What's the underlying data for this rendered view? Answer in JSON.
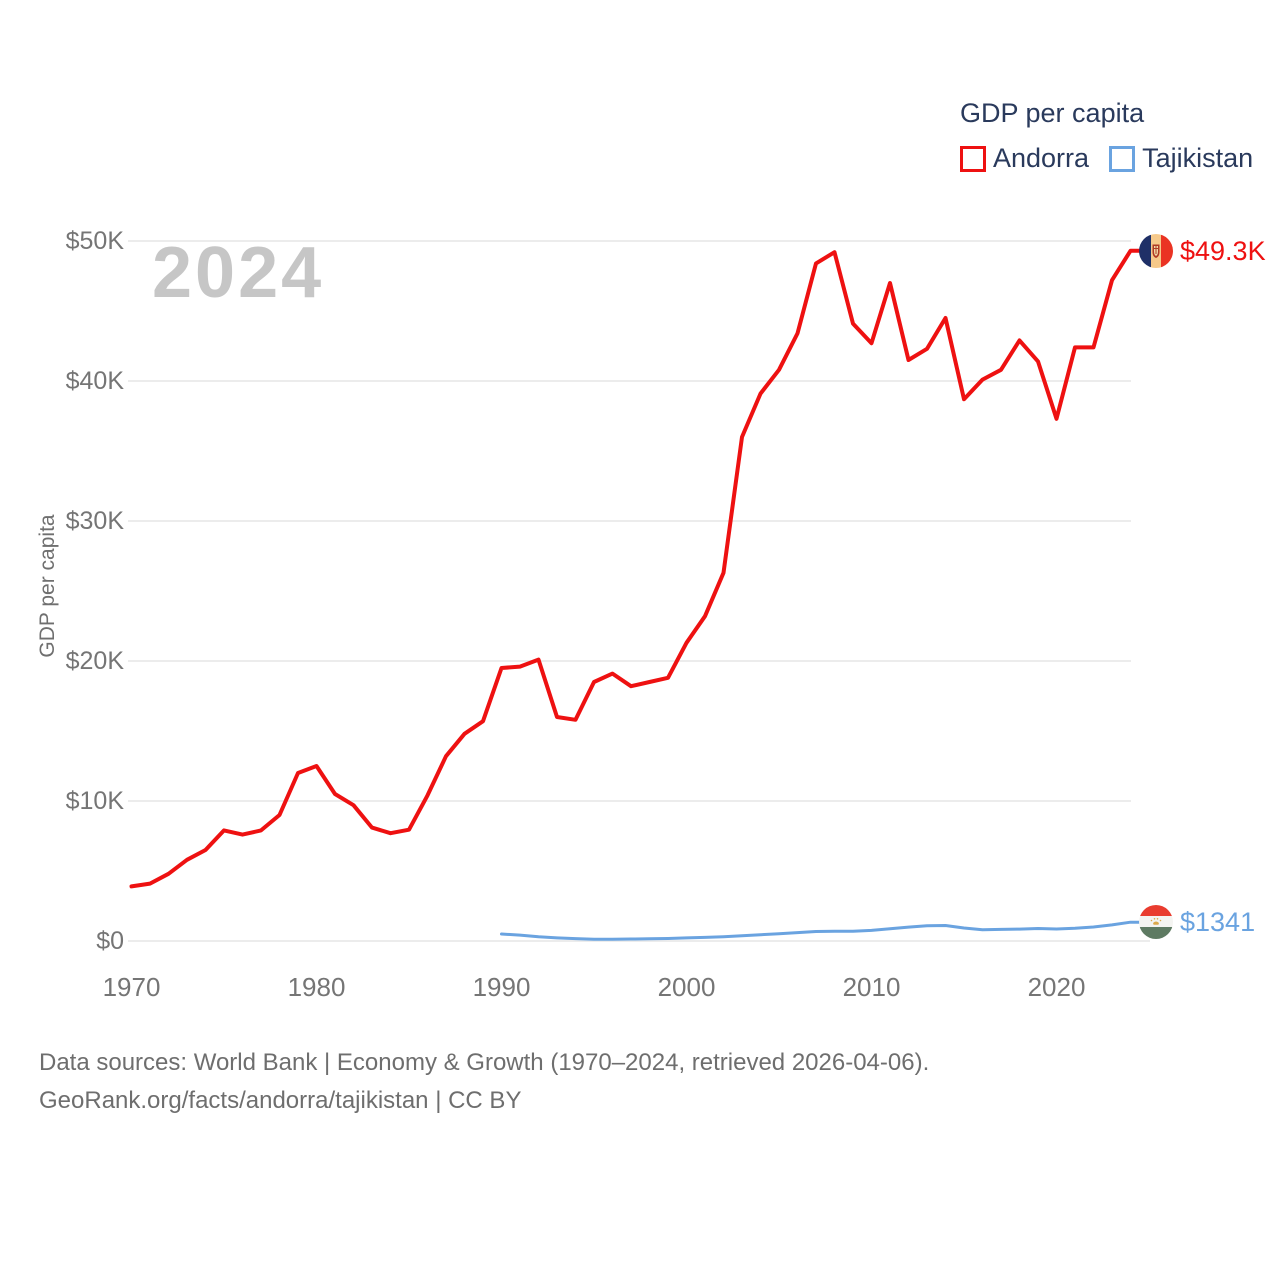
{
  "legend": {
    "title": "GDP per capita",
    "items": [
      {
        "label": "Andorra"
      },
      {
        "label": "Tajikistan"
      }
    ]
  },
  "footer": {
    "line1": "Data sources: World Bank | Economy & Growth (1970–2024, retrieved 2026-04-06).",
    "line2": "GeoRank.org/facts/andorra/tajikistan | CC BY"
  },
  "chart_data": {
    "type": "line",
    "title": "GDP per capita",
    "ylabel": "GDP per capita",
    "watermark": "2024",
    "xlim": [
      1970,
      2024
    ],
    "ylim": [
      0,
      50000
    ],
    "grid": true,
    "grid_color": "#ececec",
    "legend_position": "top-right",
    "x_ticks": [
      {
        "label": "1970",
        "value": 1970
      },
      {
        "label": "1980",
        "value": 1980
      },
      {
        "label": "1990",
        "value": 1990
      },
      {
        "label": "2000",
        "value": 2000
      },
      {
        "label": "2010",
        "value": 2010
      },
      {
        "label": "2020",
        "value": 2020
      }
    ],
    "y_ticks": [
      {
        "label": "$0",
        "value": 0
      },
      {
        "label": "$10K",
        "value": 10000
      },
      {
        "label": "$20K",
        "value": 20000
      },
      {
        "label": "$30K",
        "value": 30000
      },
      {
        "label": "$40K",
        "value": 40000
      },
      {
        "label": "$50K",
        "value": 50000
      }
    ],
    "series": [
      {
        "name": "Andorra",
        "color": "#ee1111",
        "stroke_width": 4,
        "end_label": "$49.3K",
        "end_value": 49300,
        "start_year": 1970,
        "values": [
          3900,
          4100,
          4800,
          5800,
          6500,
          7900,
          7600,
          7900,
          9000,
          12000,
          12500,
          10500,
          9700,
          8100,
          7700,
          7950,
          10400,
          13200,
          14800,
          15700,
          19500,
          19600,
          20100,
          16000,
          15800,
          18500,
          19100,
          18200,
          18500,
          18800,
          21300,
          23200,
          26300,
          36000,
          39100,
          40800,
          43400,
          48400,
          49200,
          44100,
          42700,
          47000,
          41500,
          42300,
          44500,
          38700,
          40100,
          40800,
          42900,
          41400,
          37300,
          42400,
          42400,
          47200,
          49300
        ]
      },
      {
        "name": "Tajikistan",
        "color": "#6aa3e0",
        "stroke_width": 3,
        "end_label": "$1341",
        "end_value": 1341,
        "start_year": 1990,
        "values": [
          500,
          420,
          300,
          220,
          170,
          130,
          130,
          140,
          160,
          180,
          220,
          260,
          310,
          380,
          450,
          520,
          600,
          680,
          700,
          690,
          760,
          870,
          990,
          1090,
          1110,
          930,
          800,
          830,
          850,
          890,
          860,
          910,
          1000,
          1150,
          1341
        ]
      }
    ]
  }
}
